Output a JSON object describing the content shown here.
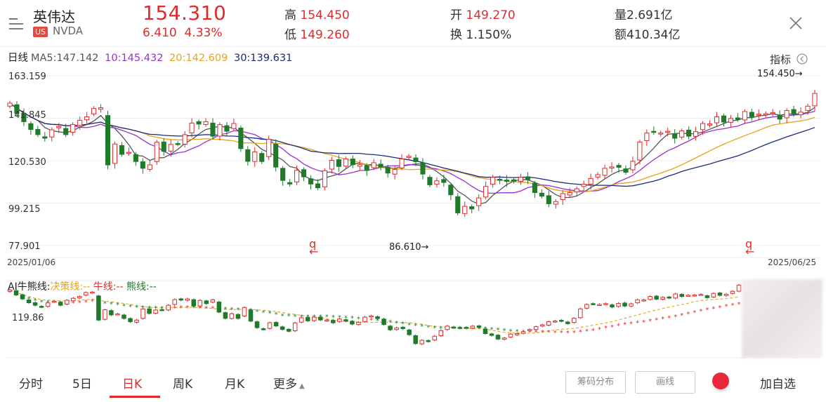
{
  "header": {
    "name": "英伟达",
    "market_badge": "US",
    "ticker": "NVDA",
    "price": "154.310",
    "change": "6.410",
    "change_pct": "4.33%",
    "high_label": "高",
    "high": "154.450",
    "low_label": "低",
    "low": "149.260",
    "open_label": "开",
    "open": "149.270",
    "turnover_label": "换",
    "turnover": "1.150%",
    "volume_label": "量",
    "volume": "2.691亿",
    "amount_label": "额",
    "amount": "410.34亿"
  },
  "ma_row": {
    "period": "日线",
    "ma5": "MA5:147.142",
    "ma10": "10:145.432",
    "ma20": "20:142.609",
    "ma30": "30:139.631"
  },
  "indicator_label": "指标",
  "y_axis": [
    "163.159",
    "141.845",
    "120.530",
    "99.215",
    "77.901"
  ],
  "date_start": "2025/01/06",
  "date_end": "2025/06/25",
  "max_annotation": "154.450→",
  "min_annotation": "86.610→",
  "sub_chart": {
    "title": "AI牛熊线:",
    "decision": "决策线:--",
    "bull": "牛线:--",
    "bear": "熊线:--",
    "y_label": "119.86"
  },
  "tabs": [
    "分时",
    "5日",
    "日K",
    "周K",
    "月K",
    "更多"
  ],
  "buttons": {
    "chip": "筹码分布",
    "draw": "画线",
    "add_watch": "加自选"
  },
  "colors": {
    "up": "#e02a2a",
    "down": "#1f7a2a",
    "ma5": "#555555",
    "ma10": "#9b2fd0",
    "ma20": "#e8a21c",
    "ma30": "#1a2a7a"
  },
  "chart_data": {
    "type": "candlestick",
    "x_range": [
      "2025/01/06",
      "2025/06/25"
    ],
    "ylim": [
      77.901,
      163.159
    ],
    "y_ticks": [
      163.159,
      141.845,
      120.53,
      99.215,
      77.901
    ],
    "max_price": 154.45,
    "min_price": 86.61,
    "series": [
      {
        "name": "MA5",
        "last": 147.142
      },
      {
        "name": "MA10",
        "last": 145.432
      },
      {
        "name": "MA20",
        "last": 142.609
      },
      {
        "name": "MA30",
        "last": 139.631
      }
    ],
    "close": [
      149.4,
      144.2,
      140.1,
      136.2,
      133.6,
      131.8,
      136.0,
      137.7,
      133.6,
      138.7,
      140.8,
      142.6,
      146.7,
      147.1,
      118.4,
      128.9,
      123.7,
      124.7,
      120.1,
      116.7,
      118.4,
      129.8,
      125.2,
      128.7,
      128.9,
      133.6,
      139.4,
      138.9,
      140.1,
      132.8,
      138.6,
      135.3,
      139.2,
      126.6,
      120.2,
      124.9,
      120.1,
      131.3,
      117.3,
      110.6,
      108.8,
      115.7,
      112.4,
      108.8,
      106.9,
      115.5,
      120.7,
      117.6,
      121.4,
      118.5,
      118.5,
      115.6,
      119.5,
      117.3,
      114.3,
      116.1,
      121.4,
      122.7,
      120.0,
      113.8,
      108.4,
      110.4,
      109.6,
      103.4,
      94.3,
      97.6,
      96.3,
      101.8,
      107.6,
      112.2,
      110.9,
      110.1,
      110.2,
      112.2,
      111.0,
      104.5,
      102.7,
      98.9,
      100.0,
      104.0,
      104.5,
      106.4,
      108.7,
      111.6,
      113.5,
      116.7,
      117.4,
      117.2,
      114.7,
      120.2,
      129.9,
      134.4,
      134.8,
      134.4,
      135.3,
      131.8,
      135.5,
      132.8,
      135.1,
      139.2,
      139.0,
      142.6,
      139.9,
      141.7,
      141.2,
      145.2,
      142.6,
      143.9,
      144.1,
      144.7,
      141.4,
      145.7,
      143.8,
      144.9,
      147.9,
      154.3
    ]
  }
}
